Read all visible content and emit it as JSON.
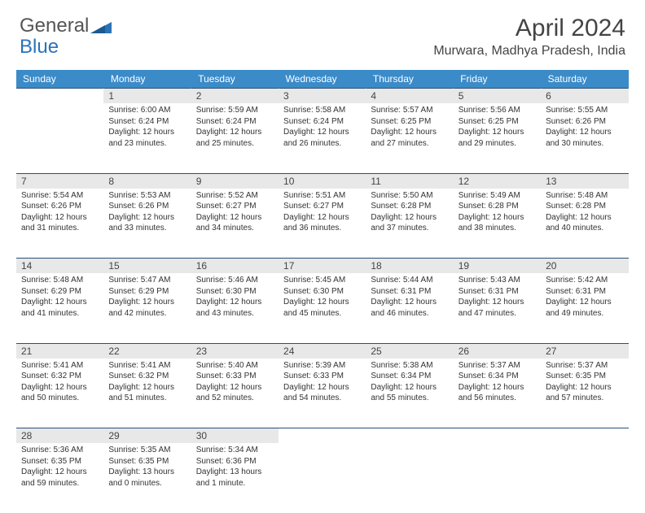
{
  "logo": {
    "text1": "General",
    "text2": "Blue"
  },
  "title": "April 2024",
  "location": "Murwara, Madhya Pradesh, India",
  "colors": {
    "header_bg": "#3b8bc9",
    "header_text": "#ffffff",
    "daynum_bg": "#e8e8e8",
    "border": "#2a4f75",
    "logo_gray": "#555555",
    "logo_blue": "#2a73b8"
  },
  "weekdays": [
    "Sunday",
    "Monday",
    "Tuesday",
    "Wednesday",
    "Thursday",
    "Friday",
    "Saturday"
  ],
  "weeks": [
    {
      "nums": [
        "",
        "1",
        "2",
        "3",
        "4",
        "5",
        "6"
      ],
      "cells": [
        null,
        {
          "sunrise": "6:00 AM",
          "sunset": "6:24 PM",
          "daylight": "12 hours and 23 minutes."
        },
        {
          "sunrise": "5:59 AM",
          "sunset": "6:24 PM",
          "daylight": "12 hours and 25 minutes."
        },
        {
          "sunrise": "5:58 AM",
          "sunset": "6:24 PM",
          "daylight": "12 hours and 26 minutes."
        },
        {
          "sunrise": "5:57 AM",
          "sunset": "6:25 PM",
          "daylight": "12 hours and 27 minutes."
        },
        {
          "sunrise": "5:56 AM",
          "sunset": "6:25 PM",
          "daylight": "12 hours and 29 minutes."
        },
        {
          "sunrise": "5:55 AM",
          "sunset": "6:26 PM",
          "daylight": "12 hours and 30 minutes."
        }
      ]
    },
    {
      "nums": [
        "7",
        "8",
        "9",
        "10",
        "11",
        "12",
        "13"
      ],
      "cells": [
        {
          "sunrise": "5:54 AM",
          "sunset": "6:26 PM",
          "daylight": "12 hours and 31 minutes."
        },
        {
          "sunrise": "5:53 AM",
          "sunset": "6:26 PM",
          "daylight": "12 hours and 33 minutes."
        },
        {
          "sunrise": "5:52 AM",
          "sunset": "6:27 PM",
          "daylight": "12 hours and 34 minutes."
        },
        {
          "sunrise": "5:51 AM",
          "sunset": "6:27 PM",
          "daylight": "12 hours and 36 minutes."
        },
        {
          "sunrise": "5:50 AM",
          "sunset": "6:28 PM",
          "daylight": "12 hours and 37 minutes."
        },
        {
          "sunrise": "5:49 AM",
          "sunset": "6:28 PM",
          "daylight": "12 hours and 38 minutes."
        },
        {
          "sunrise": "5:48 AM",
          "sunset": "6:28 PM",
          "daylight": "12 hours and 40 minutes."
        }
      ]
    },
    {
      "nums": [
        "14",
        "15",
        "16",
        "17",
        "18",
        "19",
        "20"
      ],
      "cells": [
        {
          "sunrise": "5:48 AM",
          "sunset": "6:29 PM",
          "daylight": "12 hours and 41 minutes."
        },
        {
          "sunrise": "5:47 AM",
          "sunset": "6:29 PM",
          "daylight": "12 hours and 42 minutes."
        },
        {
          "sunrise": "5:46 AM",
          "sunset": "6:30 PM",
          "daylight": "12 hours and 43 minutes."
        },
        {
          "sunrise": "5:45 AM",
          "sunset": "6:30 PM",
          "daylight": "12 hours and 45 minutes."
        },
        {
          "sunrise": "5:44 AM",
          "sunset": "6:31 PM",
          "daylight": "12 hours and 46 minutes."
        },
        {
          "sunrise": "5:43 AM",
          "sunset": "6:31 PM",
          "daylight": "12 hours and 47 minutes."
        },
        {
          "sunrise": "5:42 AM",
          "sunset": "6:31 PM",
          "daylight": "12 hours and 49 minutes."
        }
      ]
    },
    {
      "nums": [
        "21",
        "22",
        "23",
        "24",
        "25",
        "26",
        "27"
      ],
      "cells": [
        {
          "sunrise": "5:41 AM",
          "sunset": "6:32 PM",
          "daylight": "12 hours and 50 minutes."
        },
        {
          "sunrise": "5:41 AM",
          "sunset": "6:32 PM",
          "daylight": "12 hours and 51 minutes."
        },
        {
          "sunrise": "5:40 AM",
          "sunset": "6:33 PM",
          "daylight": "12 hours and 52 minutes."
        },
        {
          "sunrise": "5:39 AM",
          "sunset": "6:33 PM",
          "daylight": "12 hours and 54 minutes."
        },
        {
          "sunrise": "5:38 AM",
          "sunset": "6:34 PM",
          "daylight": "12 hours and 55 minutes."
        },
        {
          "sunrise": "5:37 AM",
          "sunset": "6:34 PM",
          "daylight": "12 hours and 56 minutes."
        },
        {
          "sunrise": "5:37 AM",
          "sunset": "6:35 PM",
          "daylight": "12 hours and 57 minutes."
        }
      ]
    },
    {
      "nums": [
        "28",
        "29",
        "30",
        "",
        "",
        "",
        ""
      ],
      "cells": [
        {
          "sunrise": "5:36 AM",
          "sunset": "6:35 PM",
          "daylight": "12 hours and 59 minutes."
        },
        {
          "sunrise": "5:35 AM",
          "sunset": "6:35 PM",
          "daylight": "13 hours and 0 minutes."
        },
        {
          "sunrise": "5:34 AM",
          "sunset": "6:36 PM",
          "daylight": "13 hours and 1 minute."
        },
        null,
        null,
        null,
        null
      ]
    }
  ],
  "labels": {
    "sunrise": "Sunrise:",
    "sunset": "Sunset:",
    "daylight": "Daylight:"
  }
}
